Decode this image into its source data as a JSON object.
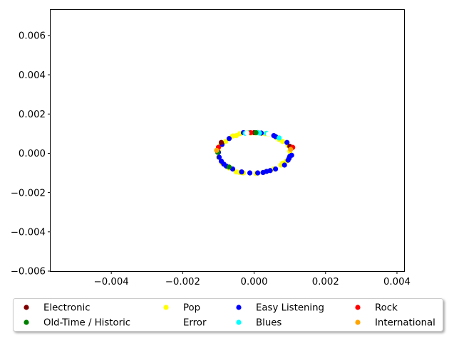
{
  "chart_data": {
    "type": "scatter",
    "title": "",
    "xlabel": "",
    "ylabel": "",
    "xlim": [
      -0.0057,
      0.0042
    ],
    "ylim": [
      -0.006,
      0.0073
    ],
    "xticks": [
      -0.004,
      -0.002,
      0.0,
      0.002,
      0.004
    ],
    "xtick_labels": [
      "−0.004",
      "−0.002",
      "0.000",
      "0.002",
      "0.004"
    ],
    "yticks": [
      -0.006,
      -0.004,
      -0.002,
      0.0,
      0.002,
      0.004,
      0.006
    ],
    "ytick_labels": [
      "−0.006",
      "−0.004",
      "−0.002",
      "0.000",
      "0.002",
      "0.004",
      "0.006"
    ],
    "grid": false,
    "legend": {
      "placement": "below",
      "columns": 4,
      "entries": [
        {
          "name": "Electronic",
          "color": "#800000"
        },
        {
          "name": "Old-Time / Historic",
          "color": "#008000"
        },
        {
          "name": "Pop",
          "color": "#ffff00"
        },
        {
          "name": "Error",
          "color": "#ffffff"
        },
        {
          "name": "Easy Listening",
          "color": "#0000ff"
        },
        {
          "name": "Blues",
          "color": "#00ffff"
        },
        {
          "name": "Rock",
          "color": "#ff0000"
        },
        {
          "name": "International",
          "color": "#ffa500"
        }
      ]
    },
    "series": [
      {
        "name": "Pop",
        "color": "#ffff00",
        "points": [
          [
            -0.0006,
            0.00088
          ],
          [
            -0.0004,
            0.001
          ],
          [
            -0.0001,
            0.00103
          ],
          [
            0.0002,
            0.00102
          ],
          [
            0.0004,
            0.00097
          ],
          [
            0.0006,
            0.00082
          ],
          [
            0.0008,
            0.0006
          ],
          [
            0.00095,
            0.0004
          ],
          [
            0.001,
            0.0001
          ],
          [
            0.00098,
            -0.0002
          ],
          [
            0.0009,
            -0.0004
          ],
          [
            0.00075,
            -0.0006
          ],
          [
            0.00055,
            -0.0008
          ],
          [
            0.0003,
            -0.00095
          ],
          [
            5e-05,
            -0.00103
          ],
          [
            -0.0003,
            -0.001
          ],
          [
            -0.0005,
            -0.00095
          ],
          [
            -0.0007,
            -0.00075
          ],
          [
            -0.0009,
            -0.0005
          ],
          [
            -0.001,
            -0.0002
          ],
          [
            -0.001,
            0.0001
          ],
          [
            -0.00095,
            0.0004
          ],
          [
            -0.0008,
            0.0006
          ],
          [
            -0.0007,
            0.00075
          ],
          [
            0.0001,
            0.00105
          ],
          [
            0.0003,
            0.001
          ],
          [
            -0.0002,
            0.00105
          ],
          [
            0.0007,
            0.0007
          ],
          [
            0.0008,
            -0.0005
          ],
          [
            -0.0004,
            -0.00098
          ],
          [
            5e-05,
            0.00103
          ],
          [
            -0.0005,
            0.0009
          ]
        ]
      },
      {
        "name": "Easy Listening",
        "color": "#0000ff",
        "points": [
          [
            -0.0007,
            0.00075
          ],
          [
            -0.0009,
            0.00045
          ],
          [
            -0.001,
            5e-05
          ],
          [
            -0.00098,
            -0.0002
          ],
          [
            -0.00092,
            -0.0004
          ],
          [
            -0.00085,
            -0.00055
          ],
          [
            -0.00078,
            -0.00065
          ],
          [
            -0.0006,
            -0.0008
          ],
          [
            -0.00035,
            -0.00095
          ],
          [
            -0.00012,
            -0.001
          ],
          [
            0.0001,
            -0.001
          ],
          [
            0.00025,
            -0.00098
          ],
          [
            0.00035,
            -0.00092
          ],
          [
            0.00045,
            -0.00088
          ],
          [
            0.0006,
            -0.0008
          ],
          [
            0.00085,
            -0.0006
          ],
          [
            0.00095,
            -0.00035
          ],
          [
            0.001,
            -0.00015
          ],
          [
            0.00105,
            -0.0001
          ],
          [
            0.00092,
            0.00055
          ],
          [
            0.00055,
            0.0009
          ],
          [
            0.0006,
            0.00085
          ],
          [
            0.0001,
            0.00105
          ],
          [
            -0.0003,
            0.00105
          ],
          [
            0.00098,
            -0.00025
          ],
          [
            0.0002,
            0.00103
          ]
        ]
      },
      {
        "name": "Blues",
        "color": "#00ffff",
        "points": [
          [
            -0.00015,
            0.00105
          ],
          [
            0.0001,
            0.00105
          ],
          [
            0.00035,
            0.00102
          ],
          [
            0.0007,
            0.00078
          ],
          [
            -0.00025,
            0.00102
          ],
          [
            0.00015,
            0.00103
          ]
        ]
      },
      {
        "name": "Electronic",
        "color": "#800000",
        "points": [
          [
            0.001,
            0.00035
          ],
          [
            -0.00092,
            0.00055
          ],
          [
            0.0,
            0.00105
          ]
        ]
      },
      {
        "name": "Old-Time / Historic",
        "color": "#008000",
        "points": [
          [
            -0.00102,
            5e-05
          ],
          [
            -0.0007,
            -0.0007
          ],
          [
            5e-05,
            0.00105
          ]
        ]
      },
      {
        "name": "Rock",
        "color": "#ff0000",
        "points": [
          [
            -0.001,
            0.0003
          ],
          [
            0.00108,
            0.0003
          ],
          [
            -0.0001,
            0.00105
          ]
        ]
      },
      {
        "name": "International",
        "color": "#ffa500",
        "points": [
          [
            -0.00105,
            0.00015
          ],
          [
            0.00102,
            0.0002
          ]
        ]
      },
      {
        "name": "Error",
        "color": "#ffffff",
        "points": [
          [
            -0.0002,
            0.00103
          ],
          [
            0.0004,
            0.00098
          ]
        ]
      }
    ]
  }
}
